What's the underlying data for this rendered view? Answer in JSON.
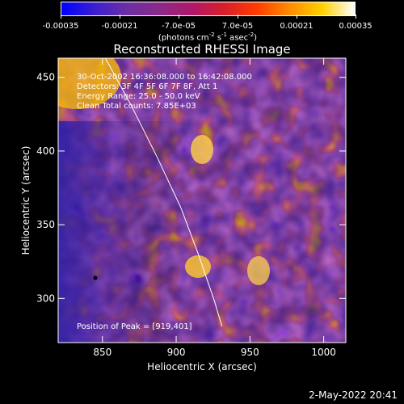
{
  "colorbar": {
    "ticks": [
      "-0.00035",
      "-0.00021",
      "-7.0e-05",
      "7.0e-05",
      "0.00021",
      "0.00035"
    ],
    "unit_prefix": "(photons cm",
    "unit_exp1": "-2",
    "unit_mid1": " s",
    "unit_exp2": "-1",
    "unit_mid2": " asec",
    "unit_exp3": "-2",
    "unit_suffix": ")",
    "colors": [
      "#0000ff",
      "#3a1fd0",
      "#6b2fa3",
      "#8a2a8a",
      "#b0186a",
      "#d81e2a",
      "#ff3c00",
      "#ff8c00",
      "#ffd000",
      "#ffffff"
    ]
  },
  "chart_data": {
    "type": "heatmap",
    "title": "Reconstructed RHESSI Image",
    "xlabel": "Heliocentric X (arcsec)",
    "ylabel": "Heliocentric Y (arcsec)",
    "xlim": [
      820,
      1015
    ],
    "ylim": [
      270,
      463
    ],
    "xticks": [
      850,
      900,
      950,
      1000
    ],
    "yticks": [
      300,
      350,
      400,
      450
    ],
    "annotations": [
      "30-Oct-2002 16:36:08.000 to 16:42:08.000",
      "Detectors: 3F 4F 5F 6F 7F 8F, Att 1",
      "Energy Range: 25.0 - 50.0 keV",
      "Clean     Total counts: 7.85E+03"
    ],
    "peak_label": "Position of Peak = [919,401]",
    "peak": [
      919,
      401
    ],
    "limb_points": [
      [
        852,
        463
      ],
      [
        870,
        430
      ],
      [
        887,
        396
      ],
      [
        903,
        362
      ],
      [
        915,
        330
      ],
      [
        926,
        298
      ],
      [
        931,
        281
      ]
    ]
  },
  "footer": {
    "timestamp": "2-May-2022 20:41"
  }
}
